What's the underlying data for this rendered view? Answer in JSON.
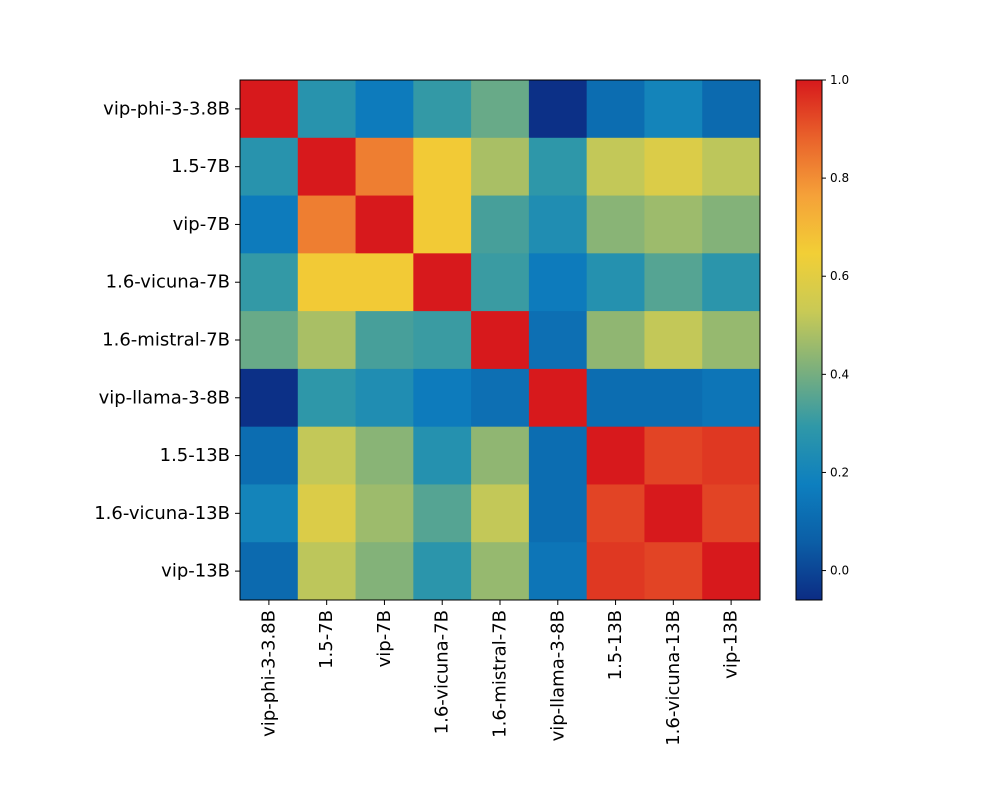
{
  "chart_data": {
    "type": "heatmap",
    "title": "",
    "xlabel": "",
    "ylabel": "",
    "row_labels": [
      "vip-phi-3-3.8B",
      "1.5-7B",
      "vip-7B",
      "1.6-vicuna-7B",
      "1.6-mistral-7B",
      "vip-llama-3-8B",
      "1.5-13B",
      "1.6-vicuna-13B",
      "vip-13B"
    ],
    "col_labels": [
      "vip-phi-3-3.8B",
      "1.5-7B",
      "vip-7B",
      "1.6-vicuna-7B",
      "1.6-mistral-7B",
      "vip-llama-3-8B",
      "1.5-13B",
      "1.6-vicuna-13B",
      "vip-13B"
    ],
    "values": [
      [
        1.0,
        0.27,
        0.16,
        0.3,
        0.38,
        -0.05,
        0.11,
        0.2,
        0.1
      ],
      [
        0.27,
        1.0,
        0.83,
        0.66,
        0.48,
        0.29,
        0.52,
        0.58,
        0.51
      ],
      [
        0.16,
        0.83,
        1.0,
        0.66,
        0.33,
        0.24,
        0.43,
        0.46,
        0.42
      ],
      [
        0.3,
        0.66,
        0.66,
        1.0,
        0.31,
        0.16,
        0.26,
        0.35,
        0.28
      ],
      [
        0.38,
        0.48,
        0.33,
        0.31,
        1.0,
        0.12,
        0.44,
        0.52,
        0.45
      ],
      [
        -0.05,
        0.29,
        0.24,
        0.16,
        0.12,
        1.0,
        0.11,
        0.11,
        0.14
      ],
      [
        0.11,
        0.52,
        0.43,
        0.26,
        0.44,
        0.11,
        1.0,
        0.93,
        0.95
      ],
      [
        0.2,
        0.58,
        0.46,
        0.35,
        0.52,
        0.11,
        0.93,
        1.0,
        0.93
      ],
      [
        0.1,
        0.51,
        0.42,
        0.28,
        0.45,
        0.14,
        0.95,
        0.93,
        1.0
      ]
    ],
    "colorbar": {
      "vmin": -0.06,
      "vmax": 1.0,
      "ticks": [
        0.0,
        0.2,
        0.4,
        0.6,
        0.8,
        1.0
      ],
      "tick_labels": [
        "0.0",
        "0.2",
        "0.4",
        "0.6",
        "0.8",
        "1.0"
      ],
      "colormap": [
        "#0c2c84",
        "#0c5ea6",
        "#0d7fbf",
        "#2f98a8",
        "#7db07c",
        "#c9ca55",
        "#f2cf36",
        "#f5a139",
        "#e9622b",
        "#d7191c"
      ]
    }
  }
}
